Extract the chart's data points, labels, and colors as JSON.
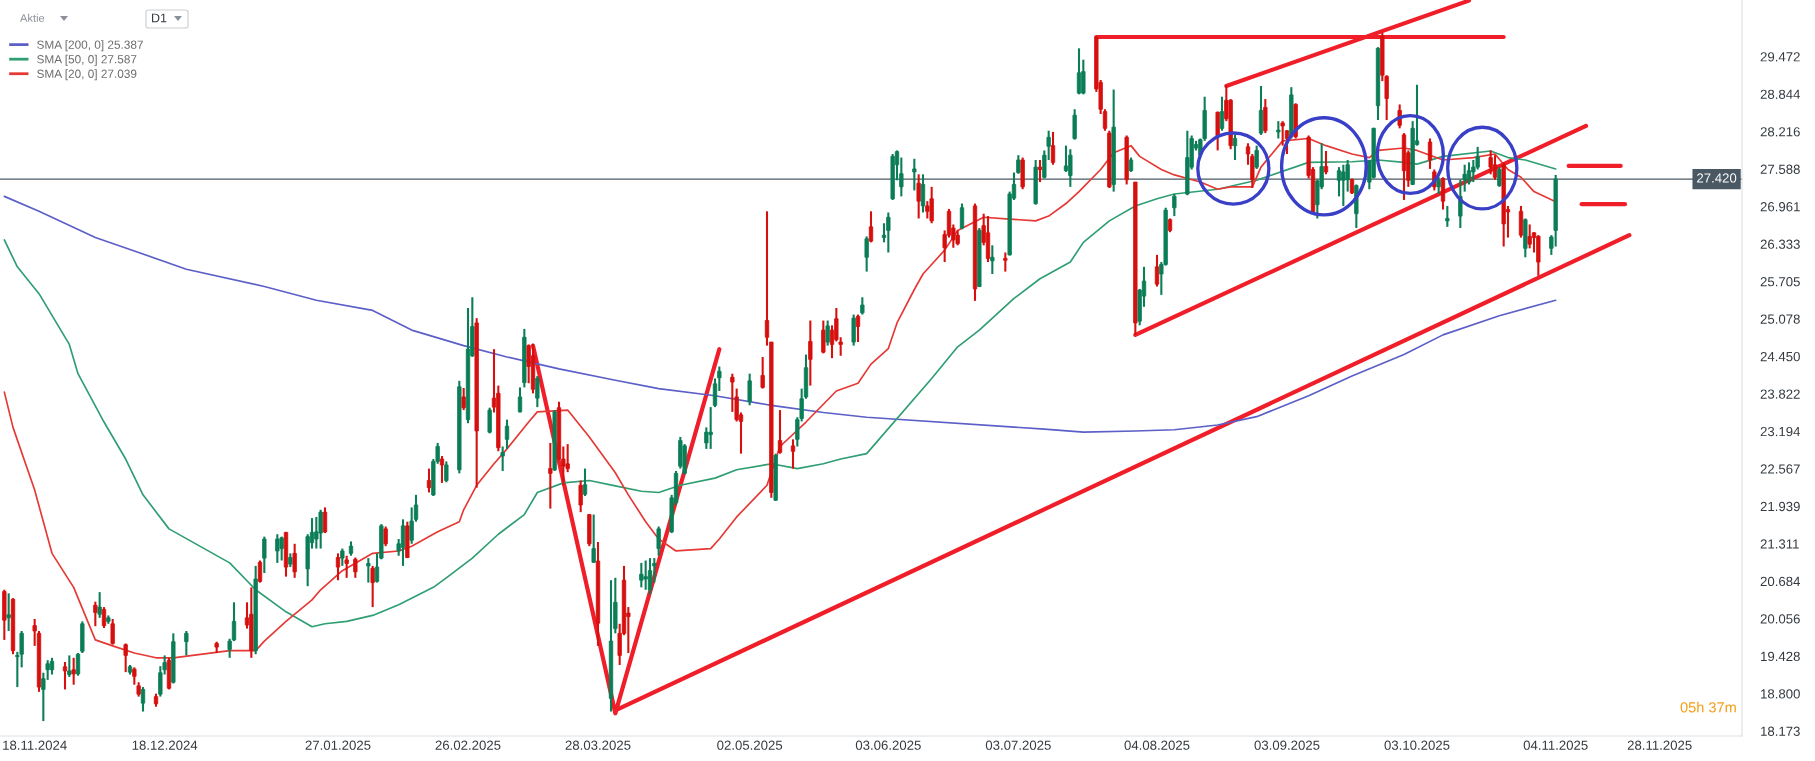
{
  "chart_data": {
    "type": "candlestick",
    "title": "Aktie",
    "subtitle": "D1",
    "x": [
      "2024-11-11",
      "2024-11-12",
      "2024-11-13",
      "2024-11-14",
      "2024-11-15",
      "2024-11-18",
      "2024-11-19",
      "2024-11-20",
      "2024-11-21",
      "2024-11-22",
      "2024-11-25",
      "2024-11-26",
      "2024-11-27",
      "2024-11-28",
      "2024-11-29",
      "2024-12-02",
      "2024-12-03",
      "2024-12-04",
      "2024-12-05",
      "2024-12-06",
      "2024-12-09",
      "2024-12-10",
      "2024-12-11",
      "2024-12-12",
      "2024-12-13",
      "2024-12-16",
      "2024-12-17",
      "2024-12-18",
      "2024-12-19",
      "2024-12-20",
      "2024-12-23",
      "2024-12-30",
      "2025-01-02",
      "2025-01-03",
      "2025-01-06",
      "2025-01-07",
      "2025-01-08",
      "2025-01-09",
      "2025-01-10",
      "2025-01-13",
      "2025-01-14",
      "2025-01-15",
      "2025-01-16",
      "2025-01-17",
      "2025-01-20",
      "2025-01-21",
      "2025-01-22",
      "2025-01-23",
      "2025-01-24",
      "2025-01-27",
      "2025-01-28",
      "2025-01-29",
      "2025-01-30",
      "2025-01-31",
      "2025-02-03",
      "2025-02-04",
      "2025-02-05",
      "2025-02-06",
      "2025-02-07",
      "2025-02-10",
      "2025-02-11",
      "2025-02-12",
      "2025-02-13",
      "2025-02-14",
      "2025-02-17",
      "2025-02-18",
      "2025-02-19",
      "2025-02-20",
      "2025-02-21",
      "2025-02-24",
      "2025-02-25",
      "2025-02-26",
      "2025-02-27",
      "2025-02-28",
      "2025-03-03",
      "2025-03-04",
      "2025-03-05",
      "2025-03-06",
      "2025-03-07",
      "2025-03-10",
      "2025-03-11",
      "2025-03-12",
      "2025-03-13",
      "2025-03-14",
      "2025-03-17",
      "2025-03-18",
      "2025-03-19",
      "2025-03-20",
      "2025-03-21",
      "2025-03-24",
      "2025-03-25",
      "2025-03-26",
      "2025-03-27",
      "2025-03-28",
      "2025-03-31",
      "2025-04-01",
      "2025-04-02",
      "2025-04-03",
      "2025-04-04",
      "2025-04-07",
      "2025-04-08",
      "2025-04-09",
      "2025-04-10",
      "2025-04-11",
      "2025-04-14",
      "2025-04-15",
      "2025-04-16",
      "2025-04-17",
      "2025-04-22",
      "2025-04-23",
      "2025-04-24",
      "2025-04-25",
      "2025-04-28",
      "2025-04-29",
      "2025-04-30",
      "2025-05-02",
      "2025-05-05",
      "2025-05-06",
      "2025-05-07",
      "2025-05-08",
      "2025-05-09",
      "2025-05-12",
      "2025-05-13",
      "2025-05-14",
      "2025-05-15",
      "2025-05-16",
      "2025-05-19",
      "2025-05-20",
      "2025-05-21",
      "2025-05-22",
      "2025-05-23",
      "2025-05-26",
      "2025-05-27",
      "2025-05-28",
      "2025-05-29",
      "2025-05-30",
      "2025-06-02",
      "2025-06-03",
      "2025-06-04",
      "2025-06-05",
      "2025-06-06",
      "2025-06-09",
      "2025-06-10",
      "2025-06-11",
      "2025-06-12",
      "2025-06-13",
      "2025-06-16",
      "2025-06-17",
      "2025-06-18",
      "2025-06-19",
      "2025-06-20",
      "2025-06-23",
      "2025-06-24",
      "2025-06-25",
      "2025-06-26",
      "2025-06-27",
      "2025-06-30",
      "2025-07-01",
      "2025-07-02",
      "2025-07-03",
      "2025-07-04",
      "2025-07-07",
      "2025-07-08",
      "2025-07-09",
      "2025-07-10",
      "2025-07-11",
      "2025-07-14",
      "2025-07-15",
      "2025-07-16",
      "2025-07-17",
      "2025-07-18",
      "2025-07-21",
      "2025-07-22",
      "2025-07-23",
      "2025-07-24",
      "2025-07-25",
      "2025-07-28",
      "2025-07-29",
      "2025-07-30",
      "2025-07-31",
      "2025-08-01",
      "2025-08-04",
      "2025-08-05",
      "2025-08-06",
      "2025-08-07",
      "2025-08-08",
      "2025-08-11",
      "2025-08-12",
      "2025-08-13",
      "2025-08-14",
      "2025-08-15",
      "2025-08-18",
      "2025-08-19",
      "2025-08-20",
      "2025-08-21",
      "2025-08-22",
      "2025-08-25",
      "2025-08-26",
      "2025-08-27",
      "2025-08-28",
      "2025-08-29",
      "2025-09-01",
      "2025-09-02",
      "2025-09-03",
      "2025-09-04",
      "2025-09-05",
      "2025-09-08",
      "2025-09-09",
      "2025-09-10",
      "2025-09-11",
      "2025-09-12",
      "2025-09-15",
      "2025-09-16",
      "2025-09-17",
      "2025-09-18",
      "2025-09-19",
      "2025-09-22",
      "2025-09-23",
      "2025-09-24",
      "2025-09-25",
      "2025-09-26",
      "2025-09-29",
      "2025-09-30",
      "2025-10-01",
      "2025-10-02",
      "2025-10-03",
      "2025-10-06",
      "2025-10-07",
      "2025-10-08",
      "2025-10-09",
      "2025-10-10",
      "2025-10-13",
      "2025-10-14",
      "2025-10-15",
      "2025-10-16",
      "2025-10-17",
      "2025-10-20",
      "2025-10-21",
      "2025-10-22",
      "2025-10-23",
      "2025-10-24",
      "2025-10-27",
      "2025-10-28",
      "2025-10-29",
      "2025-10-30",
      "2025-10-31",
      "2025-11-03",
      "2025-11-04"
    ],
    "ohlc": [
      [
        20.51,
        20.54,
        19.7,
        20.03
      ],
      [
        20.07,
        20.48,
        19.85,
        20.12
      ],
      [
        20.38,
        20.4,
        19.46,
        19.52
      ],
      [
        19.42,
        19.5,
        18.91,
        19.44
      ],
      [
        19.46,
        19.85,
        19.24,
        19.81
      ],
      [
        19.94,
        20.05,
        19.6,
        19.85
      ],
      [
        19.81,
        19.85,
        18.83,
        18.91
      ],
      [
        18.87,
        19.15,
        18.34,
        19.05
      ],
      [
        19.2,
        19.36,
        19.03,
        19.3
      ],
      [
        19.2,
        19.4,
        19.12,
        19.34
      ],
      [
        19.25,
        19.33,
        18.87,
        19.18
      ],
      [
        19.12,
        19.44,
        19.08,
        19.18
      ],
      [
        19.2,
        19.4,
        18.95,
        19.13
      ],
      [
        19.13,
        19.48,
        19.1,
        19.46
      ],
      [
        19.51,
        20.01,
        19.48,
        19.97
      ],
      [
        20.28,
        20.34,
        19.93,
        20.16
      ],
      [
        20.13,
        20.5,
        20.07,
        20.25
      ],
      [
        20.21,
        20.25,
        19.9,
        19.94
      ],
      [
        20.01,
        20.11,
        19.97,
        20.07
      ],
      [
        19.97,
        20.05,
        19.62,
        19.64
      ],
      [
        19.62,
        19.64,
        19.16,
        19.44
      ],
      [
        19.16,
        19.28,
        19.12,
        19.25
      ],
      [
        19.21,
        19.24,
        18.95,
        19.09
      ],
      [
        18.93,
        18.99,
        18.75,
        18.79
      ],
      [
        18.64,
        18.91,
        18.5,
        18.87
      ],
      [
        18.75,
        18.8,
        18.58,
        18.63
      ],
      [
        18.79,
        19.26,
        18.75,
        19.15
      ],
      [
        19.2,
        19.44,
        19.12,
        19.32
      ],
      [
        19.36,
        19.4,
        18.87,
        18.89
      ],
      [
        18.99,
        19.81,
        18.97,
        19.67
      ],
      [
        19.67,
        19.85,
        19.44,
        19.81
      ],
      [
        19.64,
        19.67,
        19.48,
        19.58
      ],
      [
        19.54,
        19.72,
        19.4,
        19.68
      ],
      [
        19.7,
        20.33,
        19.68,
        20.01
      ],
      [
        20.07,
        20.33,
        19.89,
        19.95
      ],
      [
        20.13,
        20.58,
        19.4,
        19.52
      ],
      [
        19.52,
        20.94,
        19.46,
        20.72
      ],
      [
        21.0,
        21.03,
        20.66,
        20.68
      ],
      [
        21.07,
        21.43,
        20.82,
        21.39
      ],
      [
        21.19,
        21.47,
        20.99,
        21.39
      ],
      [
        21.23,
        21.43,
        21.03,
        21.41
      ],
      [
        21.5,
        21.51,
        20.76,
        20.92
      ],
      [
        20.97,
        21.15,
        20.92,
        21.08
      ],
      [
        21.15,
        21.31,
        20.74,
        20.84
      ],
      [
        20.89,
        21.47,
        20.6,
        21.43
      ],
      [
        21.33,
        21.74,
        21.23,
        21.5
      ],
      [
        21.39,
        21.76,
        21.23,
        21.51
      ],
      [
        21.49,
        21.88,
        21.23,
        21.84
      ],
      [
        21.84,
        21.92,
        21.49,
        21.51
      ],
      [
        21.08,
        21.15,
        20.7,
        20.92
      ],
      [
        21.07,
        21.23,
        20.94,
        21.19
      ],
      [
        21.04,
        21.11,
        20.74,
        20.98
      ],
      [
        21.15,
        21.35,
        21.11,
        21.27
      ],
      [
        21.05,
        21.08,
        20.74,
        20.84
      ],
      [
        20.94,
        21.07,
        20.66,
        20.98
      ],
      [
        20.9,
        20.94,
        20.25,
        20.66
      ],
      [
        20.68,
        21.15,
        20.66,
        20.92
      ],
      [
        21.07,
        21.64,
        21.05,
        21.61
      ],
      [
        21.56,
        21.6,
        21.27,
        21.31
      ],
      [
        21.19,
        21.39,
        21.11,
        21.31
      ],
      [
        21.25,
        21.72,
        20.94,
        21.61
      ],
      [
        21.61,
        21.68,
        21.07,
        21.08
      ],
      [
        21.37,
        21.92,
        21.31,
        21.69
      ],
      [
        21.72,
        22.13,
        21.68,
        21.96
      ],
      [
        22.37,
        22.57,
        22.17,
        22.25
      ],
      [
        22.13,
        22.73,
        22.11,
        22.69
      ],
      [
        22.69,
        23.0,
        22.65,
        22.94
      ],
      [
        22.73,
        22.78,
        22.33,
        22.63
      ],
      [
        22.37,
        22.69,
        22.34,
        22.63
      ],
      [
        22.55,
        24.04,
        22.49,
        23.94
      ],
      [
        23.77,
        23.92,
        23.55,
        23.59
      ],
      [
        23.39,
        25.26,
        23.33,
        24.57
      ],
      [
        24.46,
        25.44,
        24.44,
        24.95
      ],
      [
        25.01,
        25.09,
        22.25,
        23.2
      ],
      [
        23.18,
        23.59,
        23.16,
        23.55
      ],
      [
        23.75,
        24.57,
        23.51,
        23.6
      ],
      [
        23.83,
        23.96,
        22.86,
        22.92
      ],
      [
        22.78,
        22.94,
        22.53,
        22.84
      ],
      [
        23.06,
        23.39,
        22.9,
        23.28
      ],
      [
        23.52,
        23.93,
        23.51,
        23.77
      ],
      [
        24.01,
        24.91,
        23.93,
        24.77
      ],
      [
        24.63,
        24.65,
        24.0,
        24.28
      ],
      [
        24.46,
        24.66,
        23.83,
        23.9
      ],
      [
        23.75,
        24.12,
        23.6,
        24.08
      ],
      [
        22.57,
        23.0,
        21.9,
        22.49
      ],
      [
        22.55,
        23.55,
        22.53,
        23.52
      ],
      [
        23.59,
        23.69,
        22.71,
        22.73
      ],
      [
        22.73,
        22.94,
        22.29,
        22.61
      ],
      [
        22.65,
        22.98,
        22.51,
        22.57
      ],
      [
        22.29,
        22.37,
        21.84,
        21.96
      ],
      [
        22.14,
        22.57,
        22.11,
        22.3
      ],
      [
        21.8,
        21.81,
        21.27,
        21.31
      ],
      [
        21.0,
        21.8,
        20.99,
        21.23
      ],
      [
        21.02,
        21.34,
        19.6,
        19.98
      ],
      [
        18.72,
        20.7,
        18.5,
        19.68
      ],
      [
        19.89,
        20.74,
        19.81,
        20.33
      ],
      [
        19.81,
        19.97,
        19.28,
        19.44
      ],
      [
        20.7,
        20.94,
        19.78,
        19.81
      ],
      [
        20.15,
        20.25,
        19.48,
        20.09
      ],
      [
        20.7,
        20.99,
        20.58,
        20.8
      ],
      [
        20.72,
        21.03,
        20.54,
        20.76
      ],
      [
        20.54,
        21.07,
        20.46,
        20.86
      ],
      [
        20.94,
        21.07,
        20.66,
        20.98
      ],
      [
        21.23,
        21.6,
        21.11,
        21.56
      ],
      [
        21.51,
        22.13,
        21.49,
        22.08
      ],
      [
        22.0,
        22.53,
        21.96,
        22.49
      ],
      [
        22.61,
        23.1,
        22.57,
        23.04
      ],
      [
        22.49,
        22.98,
        22.47,
        22.95
      ],
      [
        23.0,
        23.26,
        22.9,
        23.18
      ],
      [
        23.14,
        23.6,
        22.9,
        23.18
      ],
      [
        23.63,
        24.08,
        23.6,
        23.99
      ],
      [
        24.09,
        24.28,
        23.87,
        24.2
      ],
      [
        24.1,
        24.16,
        23.52,
        24.02
      ],
      [
        23.77,
        23.91,
        23.36,
        23.39
      ],
      [
        23.47,
        23.51,
        22.82,
        23.36
      ],
      [
        23.69,
        24.16,
        23.63,
        24.04
      ],
      [
        24.13,
        24.44,
        23.91,
        23.93
      ],
      [
        25.05,
        26.88,
        24.63,
        24.77
      ],
      [
        24.69,
        24.69,
        22.08,
        22.17
      ],
      [
        22.04,
        22.82,
        22.03,
        22.79
      ],
      [
        23.04,
        23.55,
        22.82,
        22.84
      ],
      [
        22.95,
        23.06,
        22.57,
        22.86
      ],
      [
        23.06,
        23.43,
        22.94,
        23.39
      ],
      [
        23.41,
        23.91,
        23.36,
        23.74
      ],
      [
        23.77,
        24.48,
        23.74,
        24.26
      ],
      [
        24.7,
        25.05,
        23.96,
        24.4
      ],
      [
        24.89,
        25.05,
        24.5,
        24.52
      ],
      [
        24.69,
        25.05,
        24.63,
        24.96
      ],
      [
        24.89,
        24.97,
        24.42,
        24.65
      ],
      [
        25.08,
        25.26,
        24.7,
        24.73
      ],
      [
        24.69,
        24.77,
        24.46,
        24.65
      ],
      [
        24.69,
        25.15,
        24.63,
        25.09
      ],
      [
        25.12,
        25.15,
        24.69,
        24.95
      ],
      [
        25.18,
        25.44,
        25.15,
        25.31
      ],
      [
        26.11,
        26.46,
        25.87,
        26.42
      ],
      [
        26.62,
        26.88,
        26.36,
        26.38
      ],
      [
        26.44,
        26.68,
        26.36,
        26.48
      ],
      [
        26.56,
        26.86,
        26.19,
        26.78
      ],
      [
        27.09,
        27.84,
        27.07,
        27.8
      ],
      [
        27.66,
        27.9,
        27.4,
        27.88
      ],
      [
        27.29,
        27.78,
        27.13,
        27.51
      ],
      [
        27.54,
        27.76,
        27.23,
        27.59
      ],
      [
        27.35,
        27.5,
        26.76,
        27.05
      ],
      [
        26.97,
        27.5,
        26.86,
        27.33
      ],
      [
        26.97,
        27.05,
        26.76,
        26.88
      ],
      [
        27.09,
        27.29,
        26.68,
        26.72
      ],
      [
        26.49,
        26.56,
        26.03,
        26.27
      ],
      [
        26.88,
        26.92,
        26.44,
        26.48
      ],
      [
        26.6,
        26.66,
        26.27,
        26.4
      ],
      [
        26.48,
        26.56,
        26.31,
        26.34
      ],
      [
        26.6,
        27.01,
        26.58,
        26.94
      ],
      [
        26.97,
        27.01,
        25.38,
        25.58
      ],
      [
        25.62,
        26.6,
        25.61,
        26.56
      ],
      [
        26.64,
        26.84,
        26.31,
        26.36
      ],
      [
        26.52,
        26.8,
        26.03,
        26.09
      ],
      [
        26.05,
        26.31,
        25.83,
        26.11
      ],
      [
        26.09,
        26.19,
        25.87,
        26.06
      ],
      [
        26.15,
        27.21,
        26.14,
        27.17
      ],
      [
        27.1,
        27.53,
        27.07,
        27.33
      ],
      [
        27.53,
        27.82,
        27.51,
        27.74
      ],
      [
        27.74,
        27.78,
        27.25,
        27.29
      ],
      [
        27.01,
        27.74,
        26.99,
        27.62
      ],
      [
        27.62,
        27.74,
        27.37,
        27.58
      ],
      [
        27.45,
        27.9,
        27.43,
        27.82
      ],
      [
        27.97,
        28.23,
        27.74,
        28.12
      ],
      [
        27.98,
        28.21,
        27.66,
        27.7
      ],
      [
        27.56,
        27.98,
        27.54,
        27.64
      ],
      [
        27.48,
        27.92,
        27.29,
        27.82
      ],
      [
        28.1,
        28.59,
        28.08,
        28.49
      ],
      [
        28.86,
        29.61,
        28.84,
        29.2
      ],
      [
        28.86,
        29.42,
        28.84,
        29.22
      ],
      [
        29.8,
        29.8,
        28.88,
        28.93
      ],
      [
        29.04,
        29.08,
        28.51,
        28.59
      ],
      [
        28.55,
        28.59,
        28.23,
        28.27
      ],
      [
        28.19,
        28.23,
        27.27,
        27.29
      ],
      [
        27.33,
        28.92,
        27.21,
        28.29
      ],
      [
        28.12,
        28.15,
        27.33,
        27.41
      ],
      [
        27.56,
        27.78,
        27.54,
        27.74
      ],
      [
        27.37,
        27.37,
        24.81,
        25.01
      ],
      [
        25.04,
        25.58,
        24.97,
        25.56
      ],
      [
        25.46,
        25.95,
        25.28,
        25.71
      ],
      [
        25.95,
        26.15,
        25.62,
        25.66
      ],
      [
        25.83,
        26.03,
        25.48,
        25.99
      ],
      [
        25.99,
        26.94,
        25.97,
        26.9
      ],
      [
        26.74,
        26.76,
        26.53,
        26.56
      ],
      [
        26.94,
        27.17,
        26.8,
        27.13
      ],
      [
        27.17,
        28.23,
        27.15,
        27.78
      ],
      [
        27.62,
        28.15,
        27.58,
        28.1
      ],
      [
        27.94,
        28.06,
        27.9,
        28.0
      ],
      [
        27.82,
        28.1,
        27.78,
        28.08
      ],
      [
        28.1,
        28.8,
        28.06,
        28.57
      ],
      [
        28.54,
        28.55,
        27.9,
        28.13
      ],
      [
        28.27,
        28.8,
        28.23,
        28.55
      ],
      [
        28.74,
        29.0,
        28.39,
        28.43
      ],
      [
        28.74,
        28.76,
        27.92,
        27.98
      ],
      [
        27.98,
        28.16,
        27.74,
        28.1
      ],
      [
        27.96,
        28.02,
        27.66,
        27.84
      ],
      [
        27.8,
        27.84,
        27.27,
        27.41
      ],
      [
        27.62,
        27.98,
        27.59,
        27.9
      ],
      [
        28.19,
        28.98,
        28.16,
        28.57
      ],
      [
        28.62,
        28.76,
        28.19,
        28.23
      ],
      [
        28.21,
        28.39,
        28.1,
        28.24
      ],
      [
        28.36,
        28.39,
        27.98,
        28.31
      ],
      [
        28.23,
        28.24,
        27.84,
        28.1
      ],
      [
        28.13,
        28.96,
        28.1,
        28.83
      ],
      [
        28.67,
        28.69,
        28.1,
        28.13
      ],
      [
        28.12,
        28.15,
        27.43,
        27.48
      ],
      [
        27.58,
        27.62,
        26.84,
        26.86
      ],
      [
        26.99,
        27.41,
        26.76,
        27.39
      ],
      [
        27.29,
        28.02,
        27.25,
        27.63
      ],
      [
        27.63,
        27.89,
        27.5,
        27.54
      ],
      [
        27.4,
        27.62,
        27.13,
        27.56
      ],
      [
        27.4,
        27.66,
        26.97,
        27.54
      ],
      [
        27.41,
        27.74,
        27.21,
        27.66
      ],
      [
        27.41,
        27.43,
        27.17,
        27.19
      ],
      [
        26.84,
        27.33,
        26.6,
        27.31
      ],
      [
        27.37,
        27.74,
        27.25,
        27.72
      ],
      [
        27.45,
        28.28,
        27.43,
        28.27
      ],
      [
        28.65,
        29.63,
        28.41,
        29.61
      ],
      [
        29.81,
        29.87,
        29.06,
        29.16
      ],
      [
        29.14,
        29.16,
        28.41,
        28.77
      ],
      [
        28.57,
        28.67,
        28.27,
        28.32
      ],
      [
        28.16,
        28.19,
        27.07,
        27.56
      ],
      [
        27.86,
        27.9,
        27.29,
        27.4
      ],
      [
        27.33,
        28.39,
        27.32,
        28.27
      ],
      [
        28.0,
        29.0,
        27.98,
        28.06
      ],
      [
        28.04,
        28.1,
        27.59,
        27.74
      ],
      [
        27.54,
        27.58,
        27.23,
        27.29
      ],
      [
        27.29,
        27.45,
        27.17,
        27.4
      ],
      [
        27.43,
        27.45,
        26.91,
        27.05
      ],
      [
        26.72,
        26.97,
        26.62,
        26.76
      ],
      [
        26.8,
        27.41,
        26.6,
        27.13
      ],
      [
        27.41,
        27.66,
        27.21,
        27.5
      ],
      [
        27.37,
        27.7,
        27.33,
        27.56
      ],
      [
        27.54,
        27.74,
        27.37,
        27.62
      ],
      [
        27.62,
        27.96,
        27.58,
        27.8
      ],
      [
        27.78,
        27.9,
        27.5,
        27.62
      ],
      [
        27.66,
        27.82,
        27.41,
        27.45
      ],
      [
        27.31,
        27.62,
        27.29,
        27.58
      ],
      [
        27.66,
        27.7,
        26.29,
        26.67
      ],
      [
        26.91,
        26.97,
        26.44,
        26.87
      ],
      [
        26.88,
        26.97,
        26.44,
        26.48
      ],
      [
        26.26,
        26.76,
        26.11,
        26.74
      ],
      [
        26.46,
        26.66,
        26.26,
        26.33
      ],
      [
        26.52,
        26.53,
        26.19,
        26.44
      ],
      [
        26.46,
        26.48,
        25.8,
        26.03
      ],
      [
        26.26,
        26.48,
        26.15,
        26.45
      ],
      [
        26.56,
        27.49,
        26.29,
        27.42
      ]
    ],
    "colors": [
      "#d6100f",
      "#0b7d57",
      "#d6100f",
      "#0b7d57",
      "#0b7d57",
      "#d6100f",
      "#d6100f",
      "#0b7d57",
      "#0b7d57",
      "#0b7d57",
      "#d6100f",
      "#0b7d57",
      "#d6100f",
      "#0b7d57",
      "#0b7d57",
      "#d6100f",
      "#0b7d57",
      "#d6100f",
      "#0b7d57",
      "#d6100f",
      "#d6100f",
      "#0b7d57",
      "#d6100f",
      "#d6100f",
      "#0b7d57",
      "#d6100f",
      "#0b7d57",
      "#0b7d57",
      "#d6100f",
      "#0b7d57",
      "#0b7d57",
      "#d6100f",
      "#0b7d57",
      "#0b7d57",
      "#d6100f",
      "#d6100f",
      "#0b7d57",
      "#d6100f",
      "#0b7d57",
      "#0b7d57",
      "#0b7d57",
      "#d6100f",
      "#0b7d57",
      "#d6100f",
      "#0b7d57",
      "#0b7d57",
      "#0b7d57",
      "#0b7d57",
      "#d6100f",
      "#d6100f",
      "#0b7d57",
      "#d6100f",
      "#0b7d57",
      "#d6100f",
      "#0b7d57",
      "#d6100f",
      "#0b7d57",
      "#0b7d57",
      "#d6100f",
      "#0b7d57",
      "#0b7d57",
      "#d6100f",
      "#0b7d57",
      "#0b7d57",
      "#d6100f",
      "#0b7d57",
      "#0b7d57",
      "#d6100f",
      "#0b7d57",
      "#0b7d57",
      "#d6100f",
      "#0b7d57",
      "#0b7d57",
      "#d6100f",
      "#0b7d57",
      "#d6100f",
      "#d6100f",
      "#0b7d57",
      "#0b7d57",
      "#0b7d57",
      "#0b7d57",
      "#d6100f",
      "#d6100f",
      "#0b7d57",
      "#d6100f",
      "#0b7d57",
      "#d6100f",
      "#d6100f",
      "#d6100f",
      "#d6100f",
      "#0b7d57",
      "#d6100f",
      "#0b7d57",
      "#d6100f",
      "#0b7d57",
      "#0b7d57",
      "#d6100f",
      "#d6100f",
      "#d6100f",
      "#0b7d57",
      "#0b7d57",
      "#0b7d57",
      "#0b7d57",
      "#0b7d57",
      "#0b7d57",
      "#0b7d57",
      "#0b7d57",
      "#0b7d57",
      "#0b7d57",
      "#0b7d57",
      "#0b7d57",
      "#0b7d57",
      "#d6100f",
      "#d6100f",
      "#d6100f",
      "#0b7d57",
      "#d6100f",
      "#d6100f",
      "#d6100f",
      "#0b7d57",
      "#d6100f",
      "#d6100f",
      "#0b7d57",
      "#0b7d57",
      "#0b7d57",
      "#d6100f",
      "#d6100f",
      "#0b7d57",
      "#d6100f",
      "#d6100f",
      "#d6100f",
      "#0b7d57",
      "#d6100f",
      "#0b7d57",
      "#0b7d57",
      "#d6100f",
      "#0b7d57",
      "#0b7d57",
      "#0b7d57",
      "#0b7d57",
      "#0b7d57",
      "#0b7d57",
      "#d6100f",
      "#0b7d57",
      "#d6100f",
      "#d6100f",
      "#d6100f",
      "#d6100f",
      "#d6100f",
      "#d6100f",
      "#0b7d57",
      "#d6100f",
      "#0b7d57",
      "#d6100f",
      "#d6100f",
      "#0b7d57",
      "#d6100f",
      "#0b7d57",
      "#0b7d57",
      "#0b7d57",
      "#d6100f",
      "#0b7d57",
      "#d6100f",
      "#0b7d57",
      "#0b7d57",
      "#d6100f",
      "#0b7d57",
      "#0b7d57",
      "#0b7d57",
      "#0b7d57",
      "#0b7d57",
      "#d6100f",
      "#d6100f",
      "#d6100f",
      "#d6100f",
      "#0b7d57",
      "#d6100f",
      "#0b7d57",
      "#d6100f",
      "#0b7d57",
      "#0b7d57",
      "#d6100f",
      "#0b7d57",
      "#0b7d57",
      "#d6100f",
      "#0b7d57",
      "#0b7d57",
      "#0b7d57",
      "#0b7d57",
      "#0b7d57",
      "#0b7d57",
      "#d6100f",
      "#0b7d57",
      "#d6100f",
      "#d6100f",
      "#0b7d57",
      "#d6100f",
      "#d6100f",
      "#0b7d57",
      "#0b7d57",
      "#d6100f",
      "#0b7d57",
      "#d6100f",
      "#d6100f",
      "#0b7d57",
      "#d6100f",
      "#d6100f",
      "#d6100f",
      "#0b7d57",
      "#0b7d57",
      "#d6100f",
      "#0b7d57",
      "#0b7d57",
      "#0b7d57",
      "#d6100f",
      "#0b7d57",
      "#0b7d57",
      "#0b7d57",
      "#0b7d57",
      "#d6100f",
      "#d6100f",
      "#d6100f",
      "#d6100f",
      "#d6100f",
      "#0b7d57",
      "#0b7d57",
      "#d6100f",
      "#d6100f",
      "#0b7d57",
      "#d6100f",
      "#0b7d57",
      "#0b7d57",
      "#0b7d57",
      "#0b7d57",
      "#0b7d57",
      "#0b7d57",
      "#d6100f",
      "#d6100f",
      "#0b7d57",
      "#d6100f",
      "#d6100f",
      "#d6100f",
      "#0b7d57",
      "#d6100f",
      "#d6100f",
      "#d6100f",
      "#0b7d57",
      "#0b7d57"
    ],
    "series": [
      {
        "type": "line",
        "name": "SMA [200, 0] 25.387",
        "color": "#5b5fc7",
        "x": [
          "2024-11-11",
          "2024-11-19",
          "2024-12-02",
          "2024-12-12",
          "2024-12-23",
          "2025-01-10",
          "2025-01-22",
          "2025-02-04",
          "2025-02-13",
          "2025-02-25",
          "2025-03-07",
          "2025-03-19",
          "2025-04-01",
          "2025-04-11",
          "2025-04-24",
          "2025-05-07",
          "2025-05-19",
          "2025-05-29",
          "2025-07-09",
          "2025-07-18",
          "2025-07-30",
          "2025-08-08",
          "2025-08-18",
          "2025-08-27",
          "2025-09-08",
          "2025-09-18",
          "2025-09-30",
          "2025-10-09",
          "2025-10-22",
          "2025-11-04"
        ],
        "values": [
          27.13,
          26.88,
          26.44,
          26.19,
          25.91,
          25.62,
          25.39,
          25.22,
          24.89,
          24.63,
          24.44,
          24.24,
          24.05,
          23.91,
          23.79,
          23.63,
          23.51,
          23.43,
          23.23,
          23.18,
          23.2,
          23.22,
          23.3,
          23.44,
          23.79,
          24.12,
          24.48,
          24.81,
          25.13,
          25.39
        ]
      },
      {
        "type": "line",
        "name": "SMA [50, 0] 27.587",
        "color": "#2f9e72",
        "x": [
          "2024-11-11",
          "2024-11-14",
          "2024-11-19",
          "2024-11-26",
          "2024-11-28",
          "2024-12-04",
          "2024-12-09",
          "2024-12-13",
          "2024-12-19",
          "2025-01-02",
          "2025-01-08",
          "2025-01-15",
          "2025-01-21",
          "2025-01-24",
          "2025-01-29",
          "2025-02-04",
          "2025-02-10",
          "2025-02-18",
          "2025-02-21",
          "2025-02-27",
          "2025-03-05",
          "2025-03-11",
          "2025-03-14",
          "2025-03-20",
          "2025-03-26",
          "2025-04-01",
          "2025-04-07",
          "2025-04-11",
          "2025-04-16",
          "2025-04-24",
          "2025-04-29",
          "2025-05-07",
          "2025-05-13",
          "2025-05-19",
          "2025-05-23",
          "2025-05-29",
          "2025-06-13",
          "2025-06-19",
          "2025-06-24",
          "2025-07-02",
          "2025-07-08",
          "2025-07-15",
          "2025-07-18",
          "2025-07-24",
          "2025-07-30",
          "2025-08-04",
          "2025-08-08",
          "2025-08-18",
          "2025-08-27",
          "2025-09-08",
          "2025-09-18",
          "2025-09-24",
          "2025-09-30",
          "2025-10-03",
          "2025-10-09",
          "2025-10-20",
          "2025-10-24",
          "2025-10-28",
          "2025-11-04"
        ],
        "values": [
          26.4,
          25.95,
          25.5,
          24.65,
          24.16,
          23.35,
          22.73,
          22.13,
          21.56,
          20.99,
          20.54,
          20.17,
          19.92,
          19.97,
          20.01,
          20.11,
          20.29,
          20.58,
          20.74,
          21.07,
          21.47,
          21.8,
          22.17,
          22.33,
          22.37,
          22.28,
          22.19,
          22.17,
          22.29,
          22.41,
          22.55,
          22.65,
          22.57,
          22.65,
          22.73,
          22.82,
          24.08,
          24.61,
          24.89,
          25.42,
          25.75,
          26.03,
          26.36,
          26.72,
          26.97,
          27.09,
          27.17,
          27.25,
          27.4,
          27.7,
          27.71,
          27.74,
          27.7,
          27.67,
          27.8,
          27.89,
          27.78,
          27.74,
          27.59
        ]
      },
      {
        "type": "line",
        "name": "SMA [20, 0] 27.039",
        "color": "#e53935",
        "x": [
          "2024-11-11",
          "2024-11-13",
          "2024-11-18",
          "2024-11-22",
          "2024-11-27",
          "2024-12-02",
          "2024-12-06",
          "2024-12-11",
          "2024-12-16",
          "2024-12-20",
          "2025-01-02",
          "2025-01-08",
          "2025-01-10",
          "2025-01-15",
          "2025-01-21",
          "2025-01-23",
          "2025-01-28",
          "2025-02-04",
          "2025-02-10",
          "2025-02-13",
          "2025-02-19",
          "2025-02-24",
          "2025-02-25",
          "2025-02-28",
          "2025-03-04",
          "2025-03-07",
          "2025-03-12",
          "2025-03-14",
          "2025-03-21",
          "2025-03-26",
          "2025-04-01",
          "2025-04-04",
          "2025-04-08",
          "2025-04-11",
          "2025-04-15",
          "2025-04-23",
          "2025-04-25",
          "2025-04-29",
          "2025-05-06",
          "2025-05-09",
          "2025-05-15",
          "2025-05-22",
          "2025-05-27",
          "2025-05-30",
          "2025-06-03",
          "2025-06-05",
          "2025-06-09",
          "2025-06-11",
          "2025-06-16",
          "2025-06-19",
          "2025-06-25",
          "2025-07-01",
          "2025-07-07",
          "2025-07-10",
          "2025-07-14",
          "2025-07-17",
          "2025-07-22",
          "2025-07-25",
          "2025-07-29",
          "2025-07-31",
          "2025-08-05",
          "2025-08-08",
          "2025-08-14",
          "2025-08-18",
          "2025-08-21",
          "2025-08-26",
          "2025-08-28",
          "2025-09-02",
          "2025-09-08",
          "2025-09-12",
          "2025-09-18",
          "2025-09-22",
          "2025-09-24",
          "2025-09-30",
          "2025-10-03",
          "2025-10-09",
          "2025-10-16",
          "2025-10-21",
          "2025-10-24",
          "2025-10-27",
          "2025-10-30",
          "2025-11-04"
        ],
        "values": [
          23.85,
          23.26,
          22.21,
          21.15,
          20.58,
          19.7,
          19.6,
          19.48,
          19.4,
          19.4,
          19.52,
          19.52,
          19.68,
          20.01,
          20.37,
          20.54,
          20.86,
          21.15,
          21.19,
          21.27,
          21.51,
          21.68,
          21.88,
          22.29,
          22.65,
          22.9,
          23.35,
          23.52,
          23.55,
          23.1,
          22.5,
          22.13,
          21.68,
          21.39,
          21.19,
          21.23,
          21.39,
          21.76,
          22.29,
          22.94,
          23.35,
          23.87,
          24.0,
          24.32,
          24.58,
          25.01,
          25.57,
          25.83,
          26.23,
          26.56,
          26.78,
          26.75,
          26.72,
          26.8,
          27.01,
          27.21,
          27.58,
          27.86,
          27.98,
          27.8,
          27.58,
          27.49,
          27.37,
          27.25,
          27.29,
          27.29,
          27.62,
          28.06,
          28.1,
          27.98,
          27.84,
          27.78,
          27.9,
          27.94,
          27.9,
          27.74,
          27.78,
          27.84,
          27.58,
          27.45,
          27.21,
          27.04
        ]
      },
      {
        "type": "line",
        "color": "#f01e28",
        "x": [
          "2025-07-21",
          "2025-10-23"
        ],
        "values": [
          29.8,
          29.8
        ]
      },
      {
        "type": "line",
        "color": "#f01e28",
        "x": [
          "2025-08-20",
          "2025-10-15"
        ],
        "values": [
          28.98,
          30.41
        ]
      },
      {
        "type": "line",
        "color": "#f01e28",
        "x": [
          "2025-07-30",
          "2025-11-11"
        ],
        "values": [
          24.81,
          28.31
        ]
      },
      {
        "type": "line",
        "color": "#f01e28",
        "x": [
          "2025-04-01",
          "2025-11-21"
        ],
        "values": [
          18.52,
          26.48
        ]
      },
      {
        "type": "line",
        "color": "#f01e28",
        "x": [
          "2025-03-13",
          "2025-04-01",
          "2025-04-25"
        ],
        "values": [
          24.63,
          18.47,
          24.57
        ]
      },
      {
        "type": "line",
        "color": "#f01e28",
        "x": [
          "2025-11-07",
          "2025-11-19"
        ],
        "values": [
          27.64,
          27.64
        ]
      },
      {
        "type": "line",
        "color": "#f01e28",
        "x": [
          "2025-11-10",
          "2025-11-20"
        ],
        "values": [
          27.0,
          27.0
        ]
      }
    ],
    "xlim": [
      "2024-11-10",
      "2025-12-17"
    ],
    "xticks": [
      {
        "value": "2024-11-18",
        "label": "18.11.2024"
      },
      {
        "value": "2024-12-18",
        "label": "18.12.2024"
      },
      {
        "value": "2025-01-27",
        "label": "27.01.2025"
      },
      {
        "value": "2025-02-26",
        "label": "26.02.2025"
      },
      {
        "value": "2025-03-28",
        "label": "28.03.2025"
      },
      {
        "value": "2025-05-02",
        "label": "02.05.2025"
      },
      {
        "value": "2025-06-03",
        "label": "03.06.2025"
      },
      {
        "value": "2025-07-03",
        "label": "03.07.2025"
      },
      {
        "value": "2025-08-04",
        "label": "04.08.2025"
      },
      {
        "value": "2025-09-03",
        "label": "03.09.2025"
      },
      {
        "value": "2025-10-03",
        "label": "03.10.2025"
      },
      {
        "value": "2025-11-04",
        "label": "04.11.2025"
      },
      {
        "value": "2025-11-28",
        "label": "28.11.2025"
      }
    ],
    "ylim": [
      18.09,
      30.42
    ],
    "yticks": [
      29.472,
      28.844,
      28.216,
      27.588,
      26.961,
      26.333,
      25.705,
      25.078,
      {
        "value": 24.45,
        "label": "24.450"
      },
      23.822,
      23.194,
      22.567,
      21.939,
      21.311,
      20.684,
      20.056,
      19.428,
      {
        "value": 18.8,
        "label": "18.800"
      },
      18.173
    ],
    "ref_lines": [
      {
        "axis": "y",
        "value": 27.42,
        "label": "27.420",
        "color": "#4a5864"
      }
    ],
    "annotations": [
      "05h 37m"
    ],
    "legend": "top left"
  }
}
